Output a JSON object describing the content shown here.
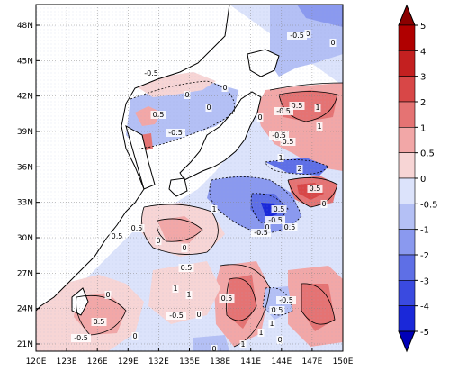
{
  "map": {
    "lon_ticks": [
      "120E",
      "123E",
      "126E",
      "129E",
      "132E",
      "135E",
      "138E",
      "141E",
      "144E",
      "147E",
      "150E"
    ],
    "lat_ticks": [
      "21N",
      "24N",
      "27N",
      "30N",
      "33N",
      "36N",
      "39N",
      "42N",
      "45N",
      "48N"
    ],
    "contour_labels": [
      "0",
      "0",
      "-0.5",
      "-0.5",
      "0",
      "0",
      "0.5",
      "-0.5",
      "0",
      "0.5",
      "1",
      "1",
      "-0.5",
      "0",
      "0",
      "-0.5",
      "0.5",
      "1",
      "2",
      "0.5",
      "0.5",
      "-0.5",
      "0",
      "0.5",
      "1",
      "-0.5",
      "0",
      "0",
      "0.5",
      "0.5",
      "0",
      "1",
      "1",
      "0",
      "-0.5",
      "0.5",
      "-0.5",
      "0.5",
      "0.5",
      "1",
      "0",
      "0",
      "1",
      "1",
      "0",
      "0",
      "-0.5",
      "0.5"
    ]
  },
  "colorbar": {
    "labels": [
      "5",
      "4",
      "3",
      "2",
      "1",
      "0.5",
      "0",
      "-0.5",
      "-1",
      "-2",
      "-3",
      "-4",
      "-5"
    ],
    "colors": [
      "#f7d5d5",
      "#f2a7a7",
      "#e57373",
      "#d84747",
      "#c42020",
      "#b00000",
      "#8b0000",
      "#dce3fb",
      "#b4c0f5",
      "#8a99ef",
      "#5e6fe6",
      "#3a4ae0",
      "#1a28d9",
      "#0000b8"
    ]
  }
}
